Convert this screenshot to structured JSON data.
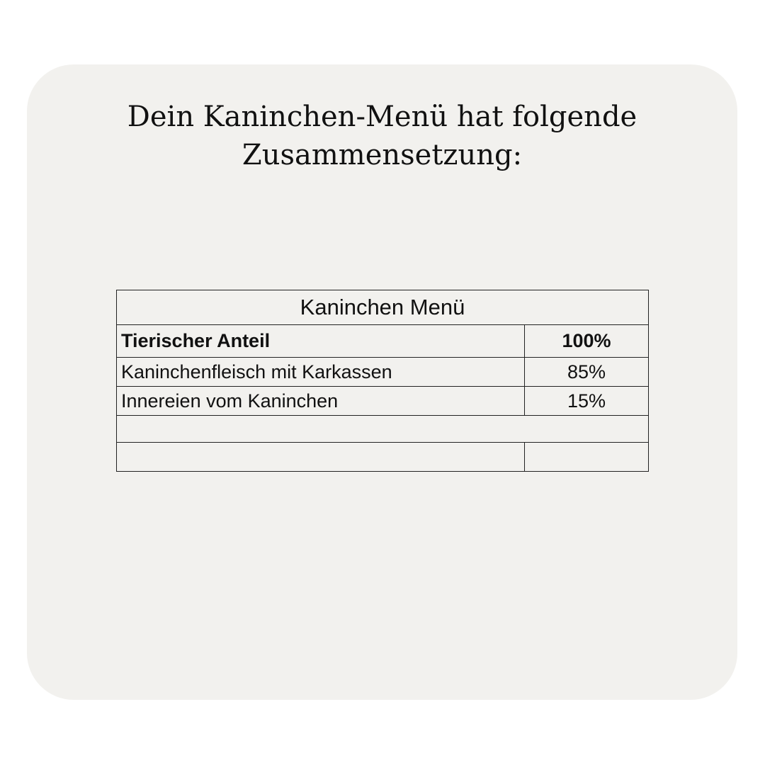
{
  "heading": "Dein Kaninchen-Menü hat folgende Zusammensetzung:",
  "table": {
    "title": "Kaninchen Menü",
    "rows": [
      {
        "label": "Tierischer Anteil",
        "value": "100%"
      },
      {
        "label": "Kaninchenfleisch mit Karkassen",
        "value": "85%"
      },
      {
        "label": "Innereien vom Kaninchen",
        "value": "15%"
      }
    ]
  }
}
